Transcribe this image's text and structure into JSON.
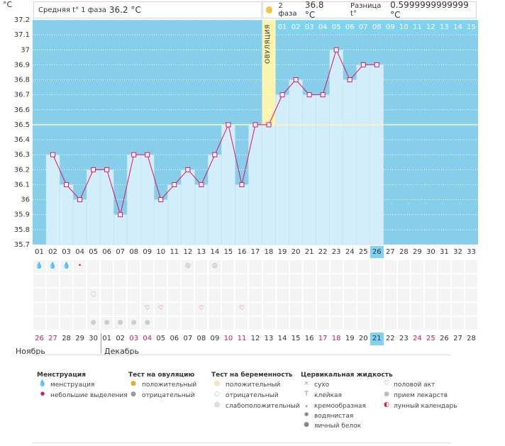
{
  "header": {
    "unit": "°C",
    "phase1_label": "Средняя t° 1 фаза",
    "phase1_value": "36.2 °C",
    "phase2_label": "2 фаза",
    "phase2_value": "36.8 °C",
    "diff_label": "Разница t°",
    "diff_value": "0.5999999999999 °C"
  },
  "ovulation_label": "ОВУЛЯЦИЯ",
  "post_ovulation_days": [
    "01",
    "02",
    "03",
    "04",
    "05",
    "06",
    "07",
    "08",
    "09",
    "10",
    "11",
    "12",
    "13",
    "14",
    "15"
  ],
  "colors": {
    "sky": "#87ceeb",
    "bar": "#d2eefa",
    "line": "#e0115f",
    "ovulation": "#fff3b0",
    "cover": "#fff8d0",
    "highlight": "#7fd3ee"
  },
  "chart_data": {
    "type": "line",
    "ylim": [
      35.7,
      37.2
    ],
    "yticks": [
      "35.7",
      "35.8",
      "35.9",
      "36",
      "36.1",
      "36.2",
      "36.3",
      "36.4",
      "36.5",
      "36.6",
      "36.7",
      "36.8",
      "36.9",
      "37",
      "37.1",
      "37.2"
    ],
    "cycle_days": [
      "01",
      "02",
      "03",
      "04",
      "05",
      "06",
      "07",
      "08",
      "09",
      "10",
      "11",
      "12",
      "13",
      "14",
      "15",
      "16",
      "17",
      "18",
      "19",
      "20",
      "21",
      "22",
      "23",
      "24",
      "25",
      "26",
      "27",
      "28",
      "29",
      "30",
      "31",
      "32",
      "33"
    ],
    "series": [
      {
        "values": [
          null,
          36.3,
          36.1,
          36.0,
          36.2,
          36.2,
          35.9,
          36.3,
          36.3,
          36.0,
          36.1,
          36.2,
          36.1,
          36.3,
          36.5,
          36.1,
          36.5,
          36.5,
          36.7,
          36.8,
          36.7,
          36.7,
          37.0,
          36.8,
          36.9,
          36.9,
          null,
          null,
          null,
          null,
          null,
          null,
          null
        ]
      }
    ],
    "coverline": 36.5,
    "ovulation_day_index": 17,
    "today_index": 25
  },
  "calendar": {
    "dates": [
      "26",
      "27",
      "28",
      "29",
      "30",
      "01",
      "02",
      "03",
      "04",
      "05",
      "06",
      "07",
      "08",
      "09",
      "10",
      "11",
      "12",
      "13",
      "14",
      "15",
      "16",
      "17",
      "18",
      "19",
      "20",
      "21",
      "22",
      "23",
      "24",
      "25",
      "26",
      "27",
      "28"
    ],
    "red_indexes": [
      0,
      1,
      7,
      8,
      14,
      15,
      21,
      22,
      28,
      29
    ],
    "today_index": 25,
    "month1": "Ноябрь",
    "month2": "Декабрь"
  },
  "legend": {
    "menstruation": {
      "title": "Менструация",
      "items": [
        "менструация",
        "небольшие выделения"
      ]
    },
    "ovulation_test": {
      "title": "Тест на овуляцию",
      "items": [
        "положительный",
        "отрицательный"
      ]
    },
    "pregnancy_test": {
      "title": "Тест на беременность",
      "items": [
        "положительный",
        "отрицательный",
        "слабоположительный"
      ]
    },
    "cervical": {
      "title": "Цервикальная жидкость",
      "items": [
        "сухо",
        "клейкая",
        "кремообразная",
        "водянистая",
        "яичный белок"
      ]
    },
    "other": {
      "items": [
        "половой акт",
        "прием лекарств",
        "лунный календарь"
      ]
    }
  }
}
